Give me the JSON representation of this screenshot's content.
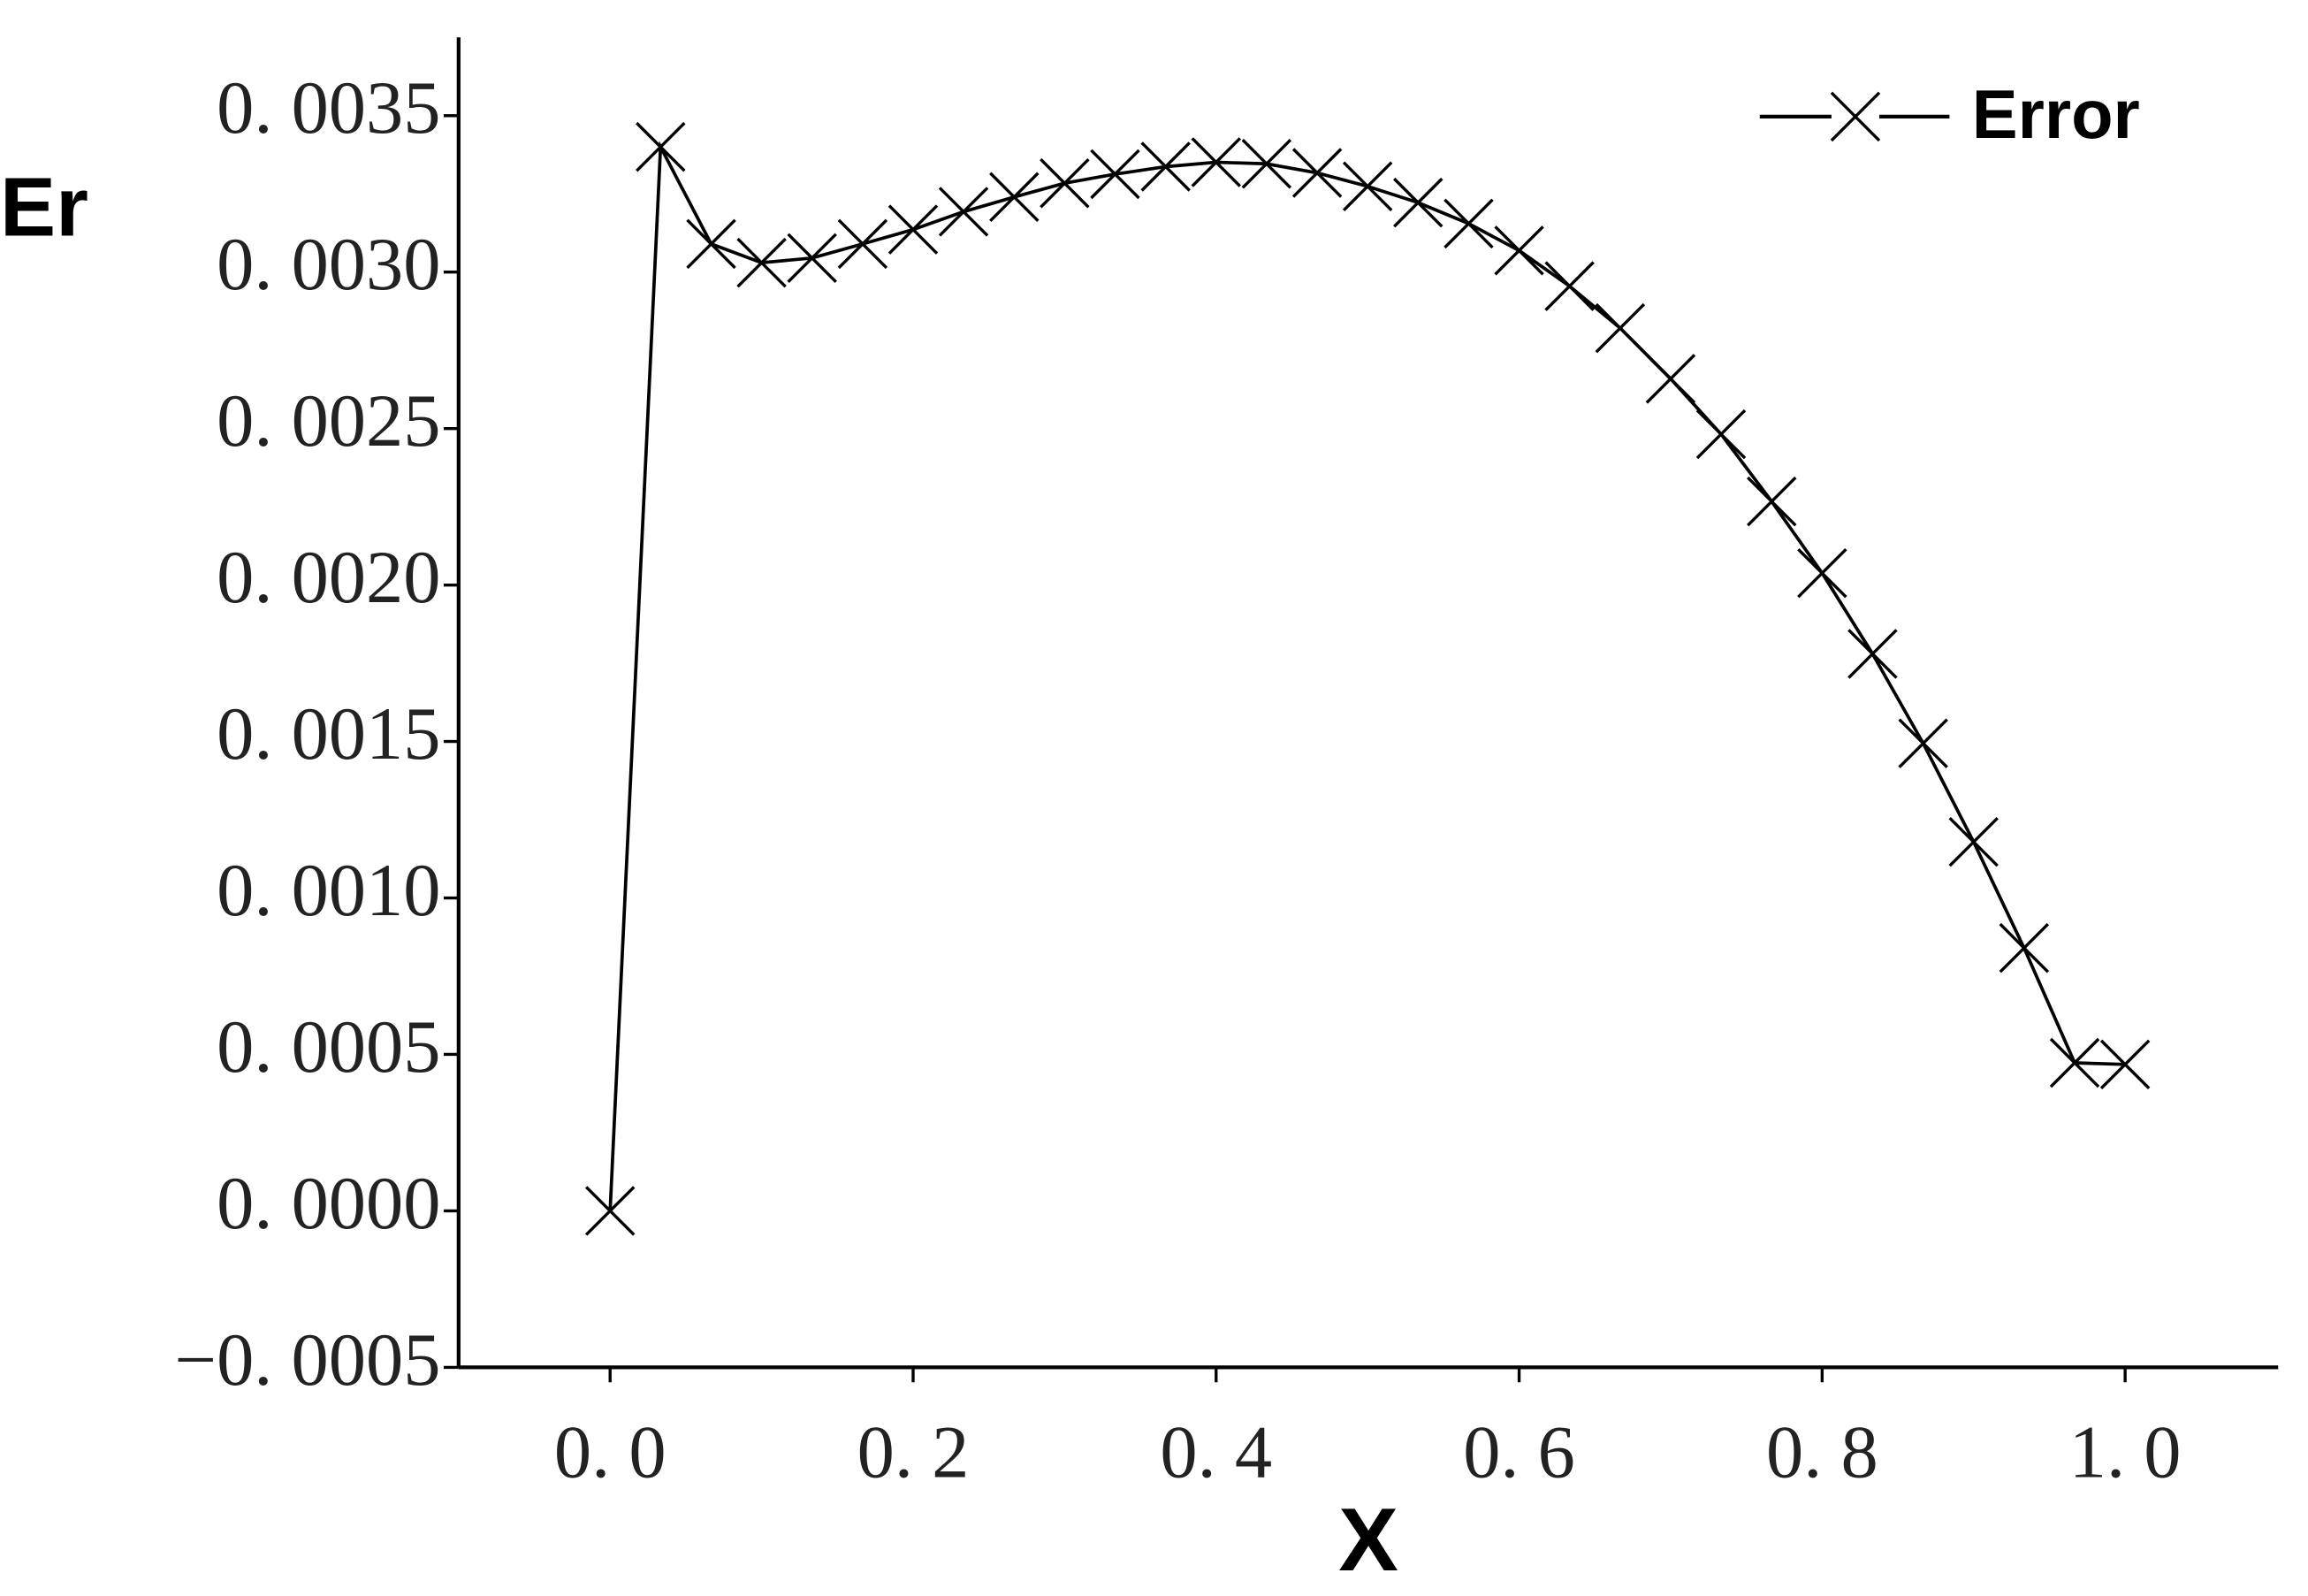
{
  "chart_data": {
    "type": "line",
    "x_label": "X",
    "y_label": "Er",
    "x": [
      0,
      0.0333,
      0.0667,
      0.1,
      0.1333,
      0.1667,
      0.2,
      0.2333,
      0.2667,
      0.3,
      0.3333,
      0.3667,
      0.4,
      0.4333,
      0.4667,
      0.5,
      0.5333,
      0.5667,
      0.6,
      0.6333,
      0.6667,
      0.7,
      0.7333,
      0.7667,
      0.8,
      0.8333,
      0.8667,
      0.9,
      0.9333,
      0.9667,
      1.0
    ],
    "series": [
      {
        "name": "Error",
        "color": "#000000",
        "values": [
          0,
          0.0034,
          0.00309,
          0.00303,
          0.003045,
          0.00309,
          0.003136,
          0.003193,
          0.00324,
          0.003284,
          0.003313,
          0.003337,
          0.003351,
          0.003346,
          0.003317,
          0.003274,
          0.003222,
          0.003155,
          0.003069,
          0.002955,
          0.002821,
          0.002659,
          0.002482,
          0.002267,
          0.002038,
          0.00178,
          0.001494,
          0.001179,
          0.00084,
          0.000473,
          0.000468
        ]
      }
    ],
    "xlim": [
      -0.1,
      1.1
    ],
    "ylim": [
      -0.0005,
      0.00375
    ],
    "xticks": [
      {
        "value": 0,
        "label": "0. 0"
      },
      {
        "value": 0.2,
        "label": "0. 2"
      },
      {
        "value": 0.4,
        "label": "0. 4"
      },
      {
        "value": 0.6,
        "label": "0. 6"
      },
      {
        "value": 0.8,
        "label": "0. 8"
      },
      {
        "value": 1.0,
        "label": "1. 0"
      }
    ],
    "yticks": [
      {
        "value": -0.0005,
        "label": "−0. 0005"
      },
      {
        "value": 0,
        "label": "0. 0000"
      },
      {
        "value": 0.0005,
        "label": "0. 0005"
      },
      {
        "value": 0.001,
        "label": "0. 0010"
      },
      {
        "value": 0.0015,
        "label": "0. 0015"
      },
      {
        "value": 0.002,
        "label": "0. 0020"
      },
      {
        "value": 0.0025,
        "label": "0. 0025"
      },
      {
        "value": 0.003,
        "label": "0. 0030"
      },
      {
        "value": 0.0035,
        "label": "0. 0035"
      }
    ],
    "legend": "top-right"
  }
}
